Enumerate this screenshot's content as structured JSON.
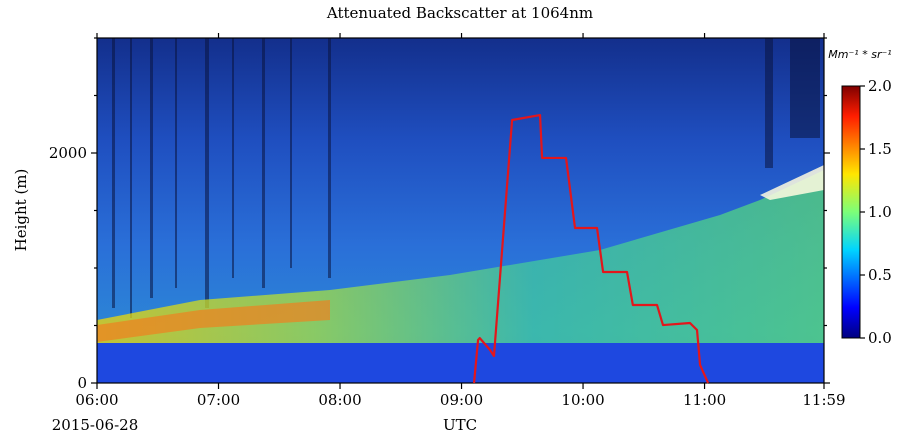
{
  "chart_data": {
    "type": "line",
    "title": "Attenuated Backscatter at 1064nm",
    "x_label": "UTC",
    "y_label": "Height (m)",
    "date_label": "2015-06-28",
    "x": [
      9.103,
      9.136,
      9.15,
      9.235,
      9.267,
      9.416,
      9.646,
      9.663,
      9.86,
      9.934,
      10.115,
      10.165,
      10.362,
      10.41,
      10.609,
      10.658,
      10.88,
      10.938,
      10.963,
      11.029
    ],
    "series": [
      {
        "color": "#e3161b",
        "values": [
          0,
          374,
          391,
          287,
          235,
          2287,
          2330,
          1957,
          1957,
          1348,
          1348,
          965,
          965,
          678,
          678,
          504,
          522,
          461,
          157,
          0
        ]
      }
    ],
    "xlim": [
      6,
      11.983
    ],
    "xticks": [
      {
        "value": 6,
        "label": "06:00"
      },
      {
        "value": 7,
        "label": "07:00"
      },
      {
        "value": 8,
        "label": "08:00"
      },
      {
        "value": 9,
        "label": "09:00"
      },
      {
        "value": 10,
        "label": "10:00"
      },
      {
        "value": 11,
        "label": "11:00"
      },
      {
        "value": 11.983,
        "label": "11:59"
      }
    ],
    "ylim": [
      0,
      3000
    ],
    "yticks": [
      0,
      2000
    ],
    "yminorticks": [
      500,
      1000,
      1500,
      2500,
      3000
    ],
    "colorbar": {
      "label": "Mm⁻¹ * sr⁻¹",
      "lim": [
        0,
        2
      ],
      "ticks": [
        {
          "value": 0,
          "label": "0.0"
        },
        {
          "value": 0.5,
          "label": "0.5"
        },
        {
          "value": 1,
          "label": "1.0"
        },
        {
          "value": 1.5,
          "label": "1.5"
        },
        {
          "value": 2,
          "label": "2.0"
        }
      ]
    }
  }
}
